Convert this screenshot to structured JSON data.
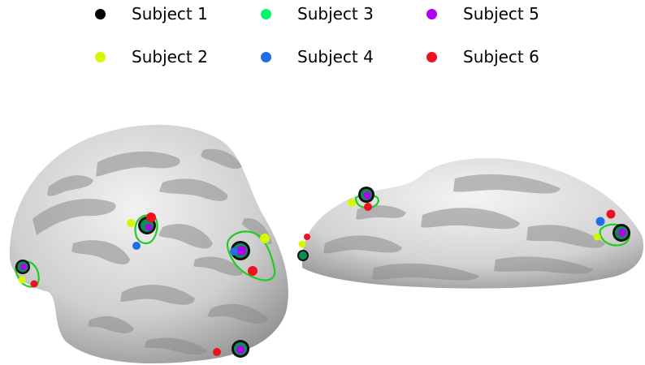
{
  "legend": {
    "items": [
      {
        "label": "Subject 1",
        "color": "#000000"
      },
      {
        "label": "Subject 2",
        "color": "#d7f700"
      },
      {
        "label": "Subject 3",
        "color": "#00f76b"
      },
      {
        "label": "Subject 4",
        "color": "#1f6fe6"
      },
      {
        "label": "Subject 5",
        "color": "#b300f0"
      },
      {
        "label": "Subject 6",
        "color": "#ee1122"
      }
    ]
  },
  "roi_outline_color": "#22cc22",
  "views": [
    {
      "name": "left-brain-view"
    },
    {
      "name": "right-brain-view"
    }
  ]
}
